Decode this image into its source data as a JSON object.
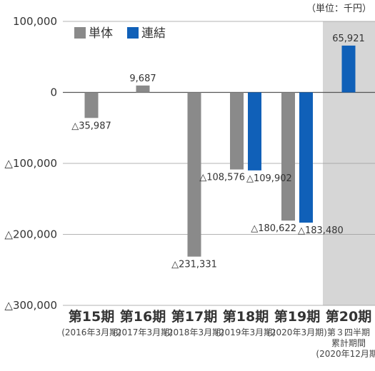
{
  "chart_data": {
    "type": "bar",
    "unit_label": "（単位：千円）",
    "ylim": [
      -300000,
      100000
    ],
    "y_ticks": [
      {
        "value": 100000,
        "label": "100,000"
      },
      {
        "value": 0,
        "label": "0"
      },
      {
        "value": -100000,
        "label": "△100,000"
      },
      {
        "value": -200000,
        "label": "△200,000"
      },
      {
        "value": -300000,
        "label": "△300,000"
      }
    ],
    "grid": true,
    "legend_position": "top-left",
    "highlighted_category_index": 5,
    "colors": {
      "highlight_band": "#d6d6d6",
      "grid": "#9a9a9a",
      "zero_line": "#555555"
    },
    "categories": [
      {
        "main": "第15期",
        "sub": [
          "(2016年3月期)"
        ]
      },
      {
        "main": "第16期",
        "sub": [
          "(2017年3月期)"
        ]
      },
      {
        "main": "第17期",
        "sub": [
          "(2018年3月期)"
        ]
      },
      {
        "main": "第18期",
        "sub": [
          "(2019年3月期)"
        ]
      },
      {
        "main": "第19期",
        "sub": [
          "(2020年3月期)"
        ]
      },
      {
        "main": "第20期",
        "sub": [
          "第３四半期",
          "累計期間",
          "(2020年12月期)"
        ]
      }
    ],
    "series": [
      {
        "name": "単体",
        "color": "#8a8a8a",
        "values": [
          -35987,
          9687,
          -231331,
          -108576,
          -180622,
          null
        ],
        "labels": [
          "△35,987",
          "9,687",
          "△231,331",
          "△108,576",
          "△180,622",
          ""
        ]
      },
      {
        "name": "連結",
        "color": "#1060b8",
        "values": [
          null,
          null,
          null,
          -109902,
          -183480,
          65921
        ],
        "labels": [
          "",
          "",
          "",
          "△109,902",
          "△183,480",
          "65,921"
        ]
      }
    ]
  }
}
